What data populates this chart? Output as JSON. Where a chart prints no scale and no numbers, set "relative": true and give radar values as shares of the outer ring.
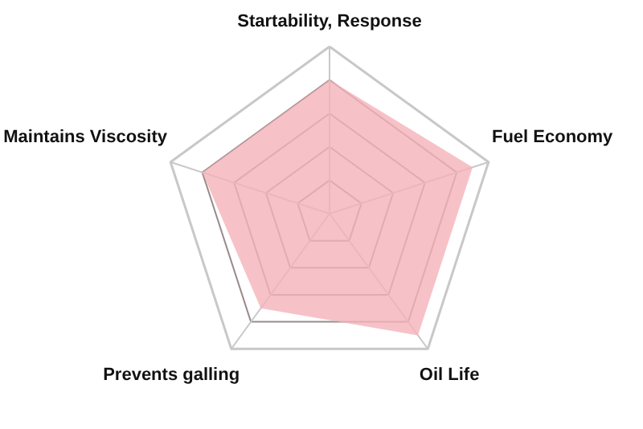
{
  "chart_data": {
    "type": "radar",
    "relative": true,
    "grid": true,
    "categories": [
      "Startability, Response",
      "Fuel Economy",
      "Oil Life",
      "Prevents galling",
      "Maintains Viscosity"
    ],
    "series": [
      {
        "color": "#f4b3b9",
        "values": [
          0.8,
          0.9,
          0.9,
          0.7,
          0.8
        ]
      }
    ]
  }
}
